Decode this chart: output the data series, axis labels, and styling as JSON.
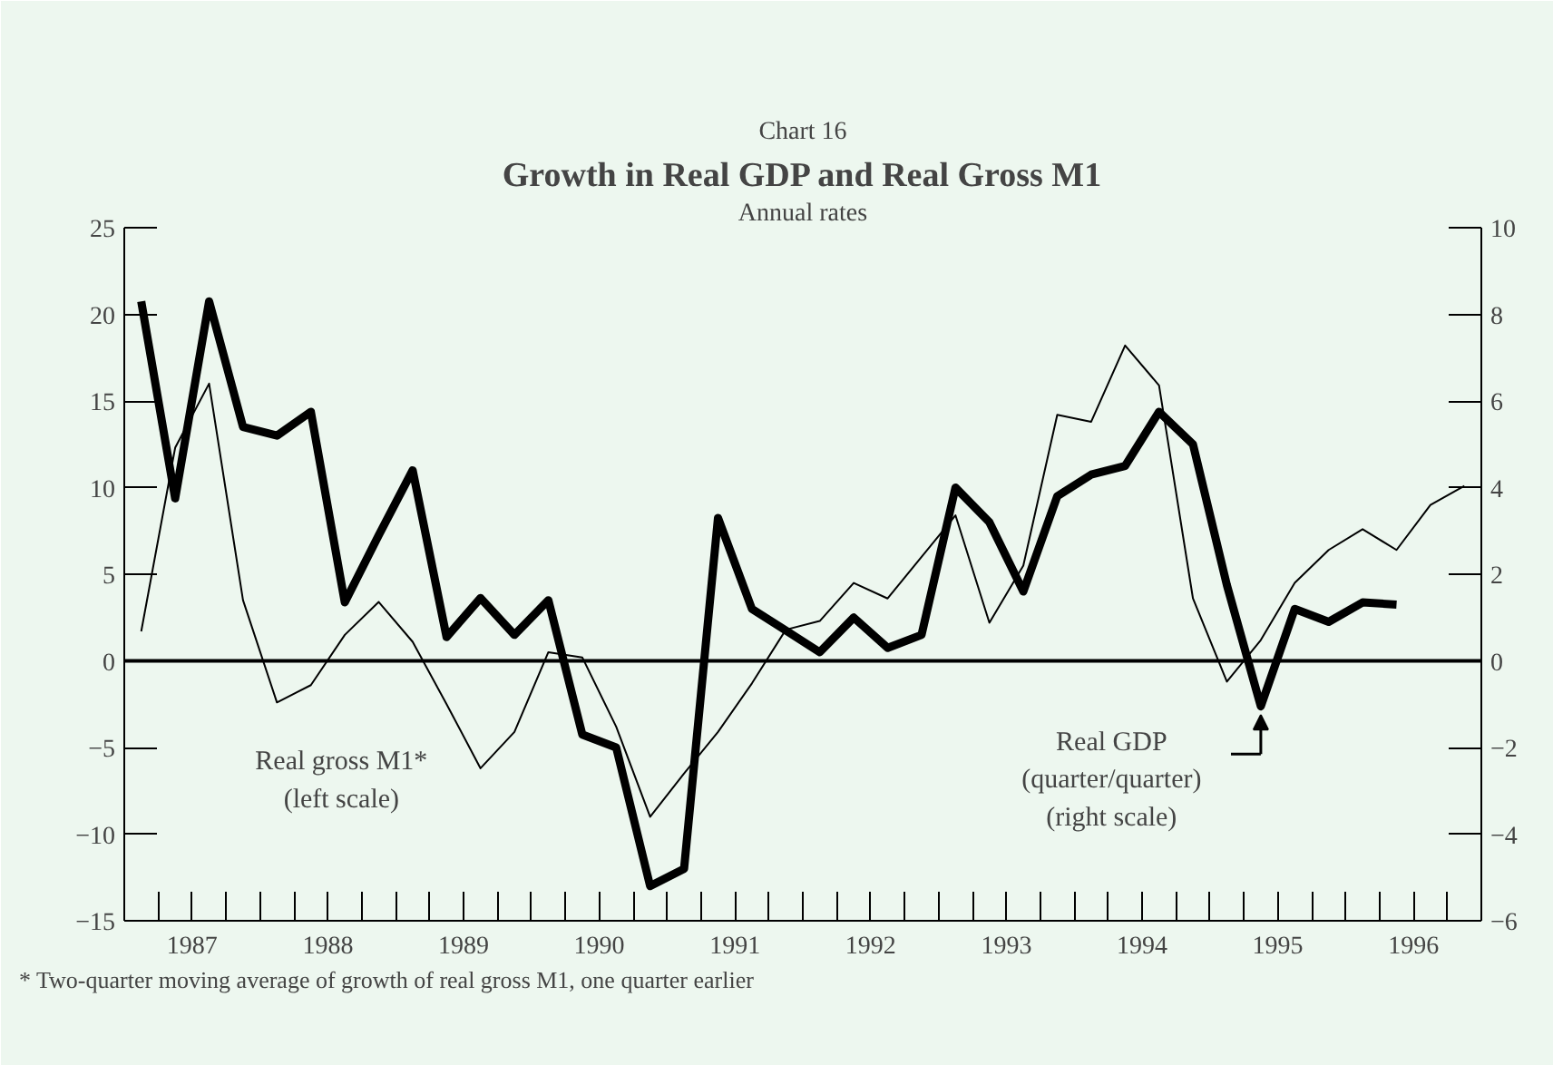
{
  "chart_data": {
    "type": "line",
    "title": "Growth in Real GDP and Real Gross M1",
    "subtitle": "Annual rates",
    "annotations": [
      "Chart 16",
      "Real gross M1*\n(left scale)",
      {
        "text": "Real GDP\n(quarter/quarter)\n(right scale)",
        "x": 1995.375,
        "y": -1.05
      },
      "* Two-quarter moving average of growth of real gross M1, one quarter earlier"
    ],
    "x": [
      1987.125,
      1987.375,
      1987.625,
      1987.875,
      1988.125,
      1988.375,
      1988.625,
      1988.875,
      1989.125,
      1989.375,
      1989.625,
      1989.875,
      1990.125,
      1990.375,
      1990.625,
      1990.875,
      1991.125,
      1991.375,
      1991.625,
      1991.875,
      1992.125,
      1992.375,
      1992.625,
      1992.875,
      1993.125,
      1993.375,
      1993.625,
      1993.875,
      1994.125,
      1994.375,
      1994.625,
      1994.875,
      1995.125,
      1995.375,
      1995.625,
      1995.875,
      1996.125,
      1996.375,
      1996.625,
      1996.875
    ],
    "series": [
      {
        "color": "#000000",
        "values": [
          1.7,
          12.3,
          16.0,
          3.5,
          -2.4,
          -1.4,
          1.5,
          3.4,
          1.1,
          -2.5,
          -6.2,
          -4.1,
          0.5,
          0.2,
          -3.8,
          -9.0,
          -6.5,
          -4.1,
          -1.3,
          1.8,
          2.3,
          4.5,
          3.6,
          6.0,
          8.4,
          2.2,
          5.5,
          14.2,
          13.8,
          18.2,
          15.9,
          3.6,
          -1.2,
          1.2,
          4.5,
          6.4,
          7.6,
          6.4,
          9.0,
          10.1
        ]
      },
      {
        "color": "#000000",
        "axis": "y2",
        "values": [
          8.3,
          3.75,
          8.3,
          5.4,
          5.2,
          5.75,
          1.35,
          2.9,
          4.4,
          0.55,
          1.45,
          0.6,
          1.4,
          -1.7,
          -2.0,
          -5.2,
          -4.8,
          3.3,
          1.2,
          0.7,
          0.2,
          1.0,
          0.3,
          0.6,
          4.0,
          3.2,
          1.6,
          3.8,
          4.3,
          4.5,
          5.75,
          5.0,
          1.75,
          -1.05,
          1.2,
          0.9,
          1.35,
          1.3,
          null,
          null
        ]
      }
    ],
    "xlim": [
      1987,
      1997
    ],
    "xticks": [
      {
        "value": 1987.5,
        "label": "1987"
      },
      {
        "value": 1988,
        "label": null
      },
      {
        "value": 1988.5,
        "label": "1988"
      },
      {
        "value": 1989,
        "label": null
      },
      {
        "value": 1989.5,
        "label": "1989"
      },
      {
        "value": 1990,
        "label": null
      },
      {
        "value": 1990.5,
        "label": "1990"
      },
      {
        "value": 1991,
        "label": null
      },
      {
        "value": 1991.5,
        "label": "1991"
      },
      {
        "value": 1992,
        "label": null
      },
      {
        "value": 1992.5,
        "label": "1992"
      },
      {
        "value": 1993,
        "label": null
      },
      {
        "value": 1993.5,
        "label": "1993"
      },
      {
        "value": 1994,
        "label": null
      },
      {
        "value": 1994.5,
        "label": "1994"
      },
      {
        "value": 1995,
        "label": null
      },
      {
        "value": 1995.5,
        "label": "1995"
      },
      {
        "value": 1996,
        "label": null
      },
      {
        "value": 1996.5,
        "label": "1996"
      }
    ],
    "ylim": [
      -15,
      25
    ],
    "yticks": [
      -15,
      -10,
      -5,
      0,
      5,
      10,
      15,
      20,
      25
    ],
    "y2lim": [
      -6,
      10
    ],
    "y2ticks": [
      -6,
      -4,
      -2,
      0,
      2,
      4,
      6,
      8,
      10
    ],
    "ref_lines": [
      {
        "axis": "y",
        "value": 0,
        "color": "#000000"
      }
    ],
    "grid": false
  }
}
